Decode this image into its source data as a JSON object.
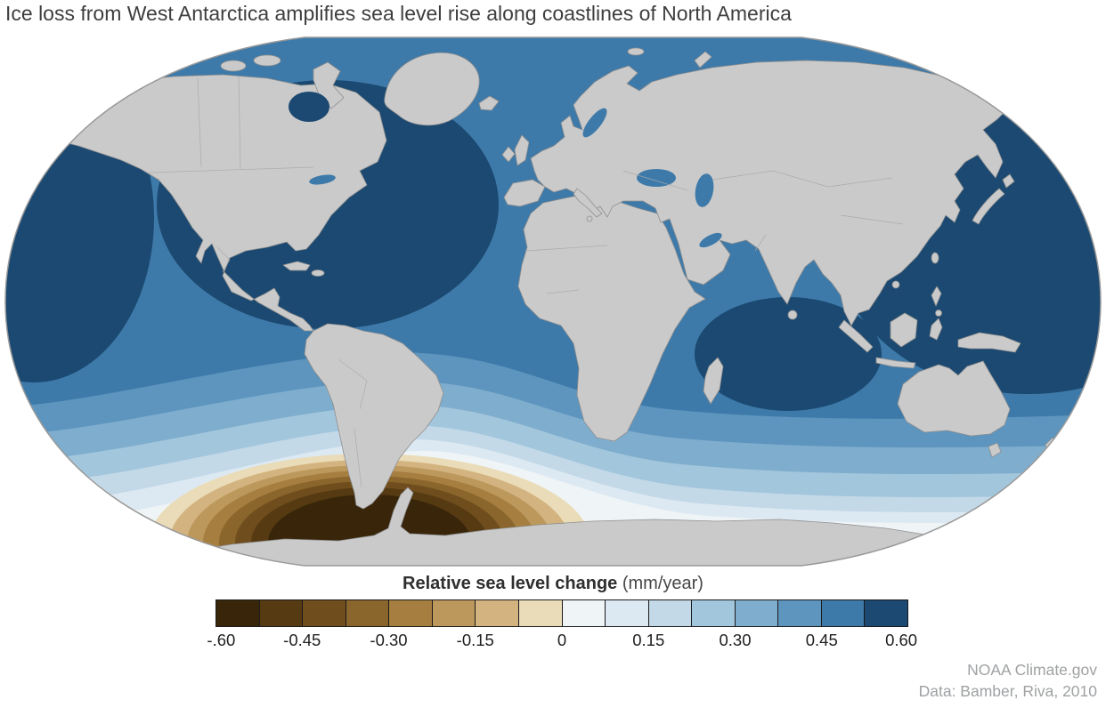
{
  "header": {
    "title": "Ice loss from West Antarctica amplifies sea level rise along coastlines of North America"
  },
  "legend": {
    "title": "Relative sea level change",
    "units": "(mm/year)",
    "tick_labels": [
      "-.60",
      "-0.45",
      "-0.30",
      "-0.15",
      "0",
      "0.15",
      "0.30",
      "0.45",
      "0.60"
    ],
    "colors": [
      "#38250a",
      "#553a12",
      "#6f4d1d",
      "#8a652c",
      "#a57e40",
      "#bc985c",
      "#d3b480",
      "#eadcb8",
      "#eff4f7",
      "#dde9f2",
      "#c3d9e8",
      "#a2c6dc",
      "#7fadcd",
      "#5d95bf",
      "#3e7aa9",
      "#1b4971"
    ]
  },
  "map": {
    "land_color": "#cacaca",
    "land_border_color": "#8f8f8f",
    "outline_color": "#999999"
  },
  "credits": {
    "source": "NOAA Climate.gov",
    "data": "Data: Bamber, Riva, 2010"
  },
  "chart_data": {
    "type": "heatmap",
    "title": "Relative sea level change (mm/year)",
    "colorbar": {
      "min": -0.6,
      "max": 0.6,
      "step": 0.075,
      "n_bins": 16,
      "tick_labels": [
        "-.60",
        "-0.45",
        "-0.30",
        "-0.15",
        "0",
        "0.15",
        "0.30",
        "0.45",
        "0.60"
      ]
    },
    "regions": [
      {
        "region": "North Atlantic Ocean (incl. Gulf of Mexico, Hudson Bay)",
        "value_mm_per_year": "0.45 to 0.60"
      },
      {
        "region": "Northwest Pacific Ocean east of Japan",
        "value_mm_per_year": "0.45 to 0.60"
      },
      {
        "region": "Far northeast Pacific (left map edge)",
        "value_mm_per_year": "0.45 to 0.60"
      },
      {
        "region": "South-central Indian Ocean",
        "value_mm_per_year": "0.45 to 0.60"
      },
      {
        "region": "Tropical and northern oceans (general)",
        "value_mm_per_year": "0.30 to 0.45"
      },
      {
        "region": "Southern mid-latitude oceans (30S-50S)",
        "value_mm_per_year": "0.075 to 0.30"
      },
      {
        "region": "Southern Ocean ring (~55S-65S)",
        "value_mm_per_year": "-0.075 to 0.075"
      },
      {
        "region": "Coastal East Antarctica",
        "value_mm_per_year": "-0.15 to 0"
      },
      {
        "region": "West Antarctica / Amundsen-Bellingshausen Seas",
        "value_mm_per_year": "-0.60 to -0.30"
      }
    ]
  }
}
